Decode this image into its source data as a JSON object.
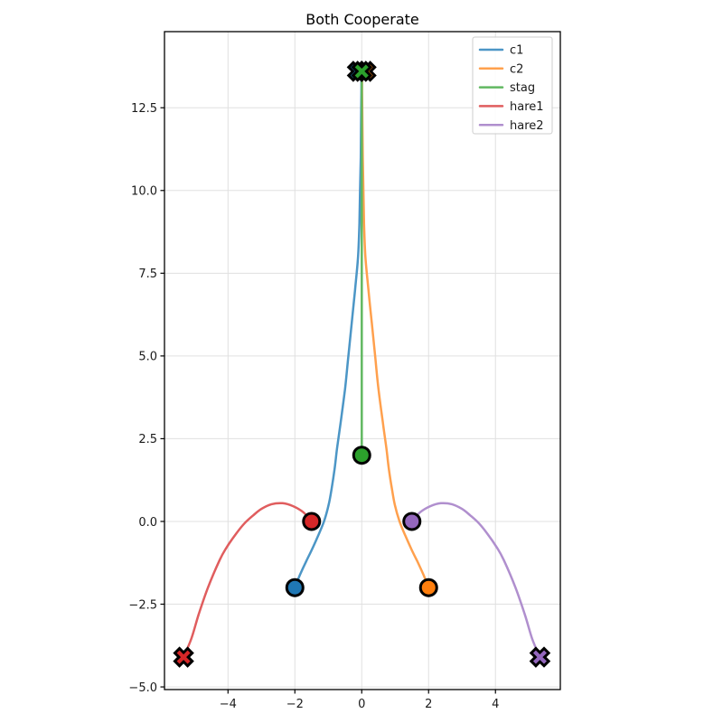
{
  "chart_data": {
    "type": "line",
    "title": "Both Cooperate",
    "xlabel": "",
    "ylabel": "",
    "xlim": [
      -5.9,
      5.94
    ],
    "ylim": [
      -5.08,
      14.8
    ],
    "grid": true,
    "xticks": [
      {
        "v": -4,
        "label": "−4"
      },
      {
        "v": -2,
        "label": "−2"
      },
      {
        "v": 0,
        "label": "0"
      },
      {
        "v": 2,
        "label": "2"
      },
      {
        "v": 4,
        "label": "4"
      }
    ],
    "yticks": [
      {
        "v": -5.0,
        "label": "−5.0"
      },
      {
        "v": -2.5,
        "label": "−2.5"
      },
      {
        "v": 0.0,
        "label": "0.0"
      },
      {
        "v": 2.5,
        "label": "2.5"
      },
      {
        "v": 5.0,
        "label": "5.0"
      },
      {
        "v": 7.5,
        "label": "7.5"
      },
      {
        "v": 10.0,
        "label": "10.0"
      },
      {
        "v": 12.5,
        "label": "12.5"
      }
    ],
    "legend": {
      "position": "upper-right",
      "entries": [
        "c1",
        "c2",
        "stag",
        "hare1",
        "hare2"
      ]
    },
    "series": [
      {
        "name": "c1",
        "line_color": "#4c96c6",
        "marker_color": "#1f77b4",
        "points": [
          [
            -2.0,
            -2.0
          ],
          [
            -1.85,
            -1.62
          ],
          [
            -1.66,
            -1.2
          ],
          [
            -1.49,
            -0.85
          ],
          [
            -1.3,
            -0.42
          ],
          [
            -1.13,
            0.0
          ],
          [
            -0.99,
            0.5
          ],
          [
            -0.9,
            1.0
          ],
          [
            -0.81,
            1.6
          ],
          [
            -0.74,
            2.2
          ],
          [
            -0.63,
            3.0
          ],
          [
            -0.5,
            4.0
          ],
          [
            -0.4,
            5.0
          ],
          [
            -0.3,
            6.0
          ],
          [
            -0.2,
            7.0
          ],
          [
            -0.11,
            8.0
          ],
          [
            -0.07,
            9.0
          ],
          [
            -0.05,
            10.0
          ],
          [
            -0.03,
            11.0
          ],
          [
            -0.02,
            12.0
          ],
          [
            -0.01,
            13.0
          ],
          [
            -0.01,
            13.55
          ]
        ],
        "markers": [
          {
            "shape": "circle",
            "x": -2.0,
            "y": -2.0
          },
          {
            "shape": "x",
            "x": -0.13,
            "y": 13.6
          }
        ]
      },
      {
        "name": "c2",
        "line_color": "#ffa04d",
        "marker_color": "#ff7f0e",
        "points": [
          [
            2.0,
            -2.0
          ],
          [
            1.85,
            -1.62
          ],
          [
            1.66,
            -1.2
          ],
          [
            1.49,
            -0.85
          ],
          [
            1.3,
            -0.42
          ],
          [
            1.13,
            0.0
          ],
          [
            0.99,
            0.5
          ],
          [
            0.9,
            1.0
          ],
          [
            0.81,
            1.6
          ],
          [
            0.74,
            2.2
          ],
          [
            0.63,
            3.0
          ],
          [
            0.5,
            4.0
          ],
          [
            0.4,
            5.0
          ],
          [
            0.3,
            6.0
          ],
          [
            0.2,
            7.0
          ],
          [
            0.11,
            8.0
          ],
          [
            0.07,
            9.0
          ],
          [
            0.05,
            10.0
          ],
          [
            0.03,
            11.0
          ],
          [
            0.02,
            12.0
          ],
          [
            0.01,
            13.0
          ],
          [
            0.01,
            13.55
          ]
        ],
        "markers": [
          {
            "shape": "circle",
            "x": 2.0,
            "y": -2.0
          },
          {
            "shape": "x",
            "x": 0.13,
            "y": 13.6
          }
        ]
      },
      {
        "name": "stag",
        "line_color": "#61b861",
        "marker_color": "#2ca02c",
        "points": [
          [
            0.0,
            2.0
          ],
          [
            0.0,
            13.6
          ]
        ],
        "markers": [
          {
            "shape": "circle",
            "x": 0.0,
            "y": 2.0
          },
          {
            "shape": "x",
            "x": 0.0,
            "y": 13.6
          }
        ]
      },
      {
        "name": "hare1",
        "line_color": "#e05d5e",
        "marker_color": "#d62728",
        "points": [
          [
            -1.5,
            0.0
          ],
          [
            -1.75,
            0.28
          ],
          [
            -2.05,
            0.46
          ],
          [
            -2.37,
            0.55
          ],
          [
            -2.7,
            0.52
          ],
          [
            -3.0,
            0.38
          ],
          [
            -3.25,
            0.18
          ],
          [
            -3.5,
            -0.05
          ],
          [
            -3.75,
            -0.36
          ],
          [
            -4.05,
            -0.8
          ],
          [
            -4.25,
            -1.17
          ],
          [
            -4.6,
            -2.0
          ],
          [
            -4.88,
            -2.82
          ],
          [
            -5.1,
            -3.55
          ],
          [
            -5.33,
            -4.1
          ]
        ],
        "markers": [
          {
            "shape": "circle",
            "x": -1.5,
            "y": 0.0
          },
          {
            "shape": "x",
            "x": -5.33,
            "y": -4.1
          }
        ]
      },
      {
        "name": "hare2",
        "line_color": "#b08fce",
        "marker_color": "#9467bd",
        "points": [
          [
            1.5,
            0.0
          ],
          [
            1.75,
            0.28
          ],
          [
            2.05,
            0.46
          ],
          [
            2.37,
            0.55
          ],
          [
            2.7,
            0.52
          ],
          [
            3.0,
            0.38
          ],
          [
            3.25,
            0.18
          ],
          [
            3.5,
            -0.05
          ],
          [
            3.75,
            -0.36
          ],
          [
            4.05,
            -0.8
          ],
          [
            4.25,
            -1.17
          ],
          [
            4.6,
            -2.0
          ],
          [
            4.88,
            -2.82
          ],
          [
            5.1,
            -3.55
          ],
          [
            5.33,
            -4.1
          ]
        ],
        "markers": [
          {
            "shape": "circle",
            "x": 1.5,
            "y": 0.0
          },
          {
            "shape": "x",
            "x": 5.33,
            "y": -4.1
          }
        ]
      }
    ],
    "style": {
      "background": "#ffffff",
      "grid_color": "#e0e0e0",
      "axis_color": "#000000",
      "tick_label_color": "#1a1a1a",
      "legend_border_color": "#cccccc",
      "marker_edge_color": "#000000",
      "line_width": 2.5
    }
  }
}
